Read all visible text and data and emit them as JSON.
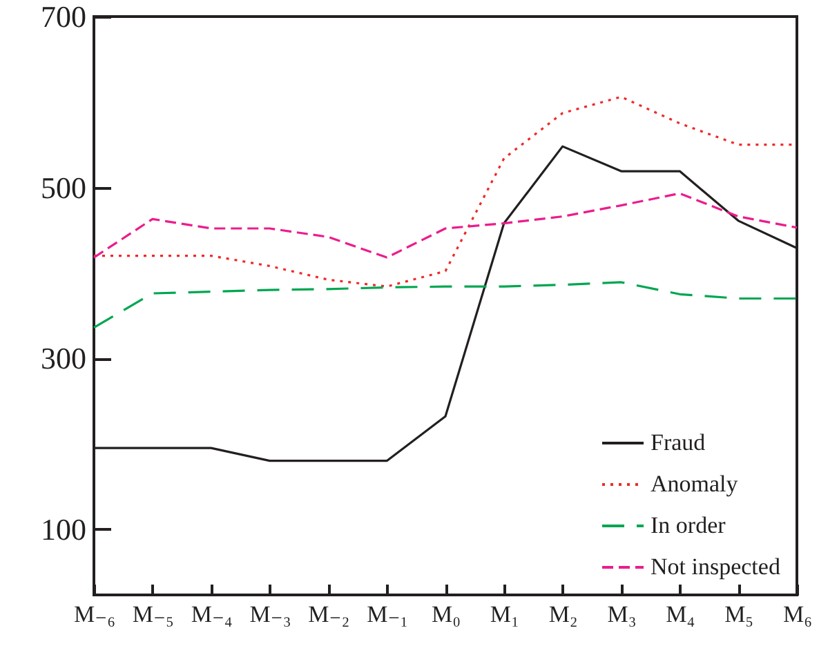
{
  "chart_data": {
    "type": "line",
    "categories": [
      "M₋₆",
      "M₋₅",
      "M₋₄",
      "M₋₃",
      "M₋₂",
      "M₋₁",
      "M₀",
      "M₁",
      "M₂",
      "M₃",
      "M₄",
      "M₅",
      "M₆"
    ],
    "ylim": [
      23,
      700
    ],
    "yticks": [
      100,
      300,
      500,
      700
    ],
    "grid": false,
    "legend": "bottom right",
    "marker": "none",
    "series": [
      {
        "name": "Fraud",
        "color": "#231f20",
        "line_style": "solid",
        "values": [
          195,
          195,
          195,
          180,
          180,
          180,
          232,
          458,
          548,
          519,
          519,
          461,
          429
        ]
      },
      {
        "name": "Anomaly",
        "color": "#ee2a2a",
        "line_style": "dotted",
        "values": [
          420,
          420,
          420,
          408,
          392,
          384,
          402,
          534,
          587,
          606,
          575,
          550,
          550
        ]
      },
      {
        "name": "In order",
        "color": "#00a651",
        "line_style": "long dashed",
        "values": [
          336,
          376,
          378,
          380,
          381,
          383,
          384,
          384,
          386,
          389,
          375,
          370,
          370
        ]
      },
      {
        "name": "Not inspected",
        "color": "#ec1c8c",
        "line_style": "dashed",
        "values": [
          418,
          463,
          452,
          452,
          442,
          418,
          452,
          458,
          466,
          479,
          493,
          466,
          453
        ]
      }
    ]
  }
}
